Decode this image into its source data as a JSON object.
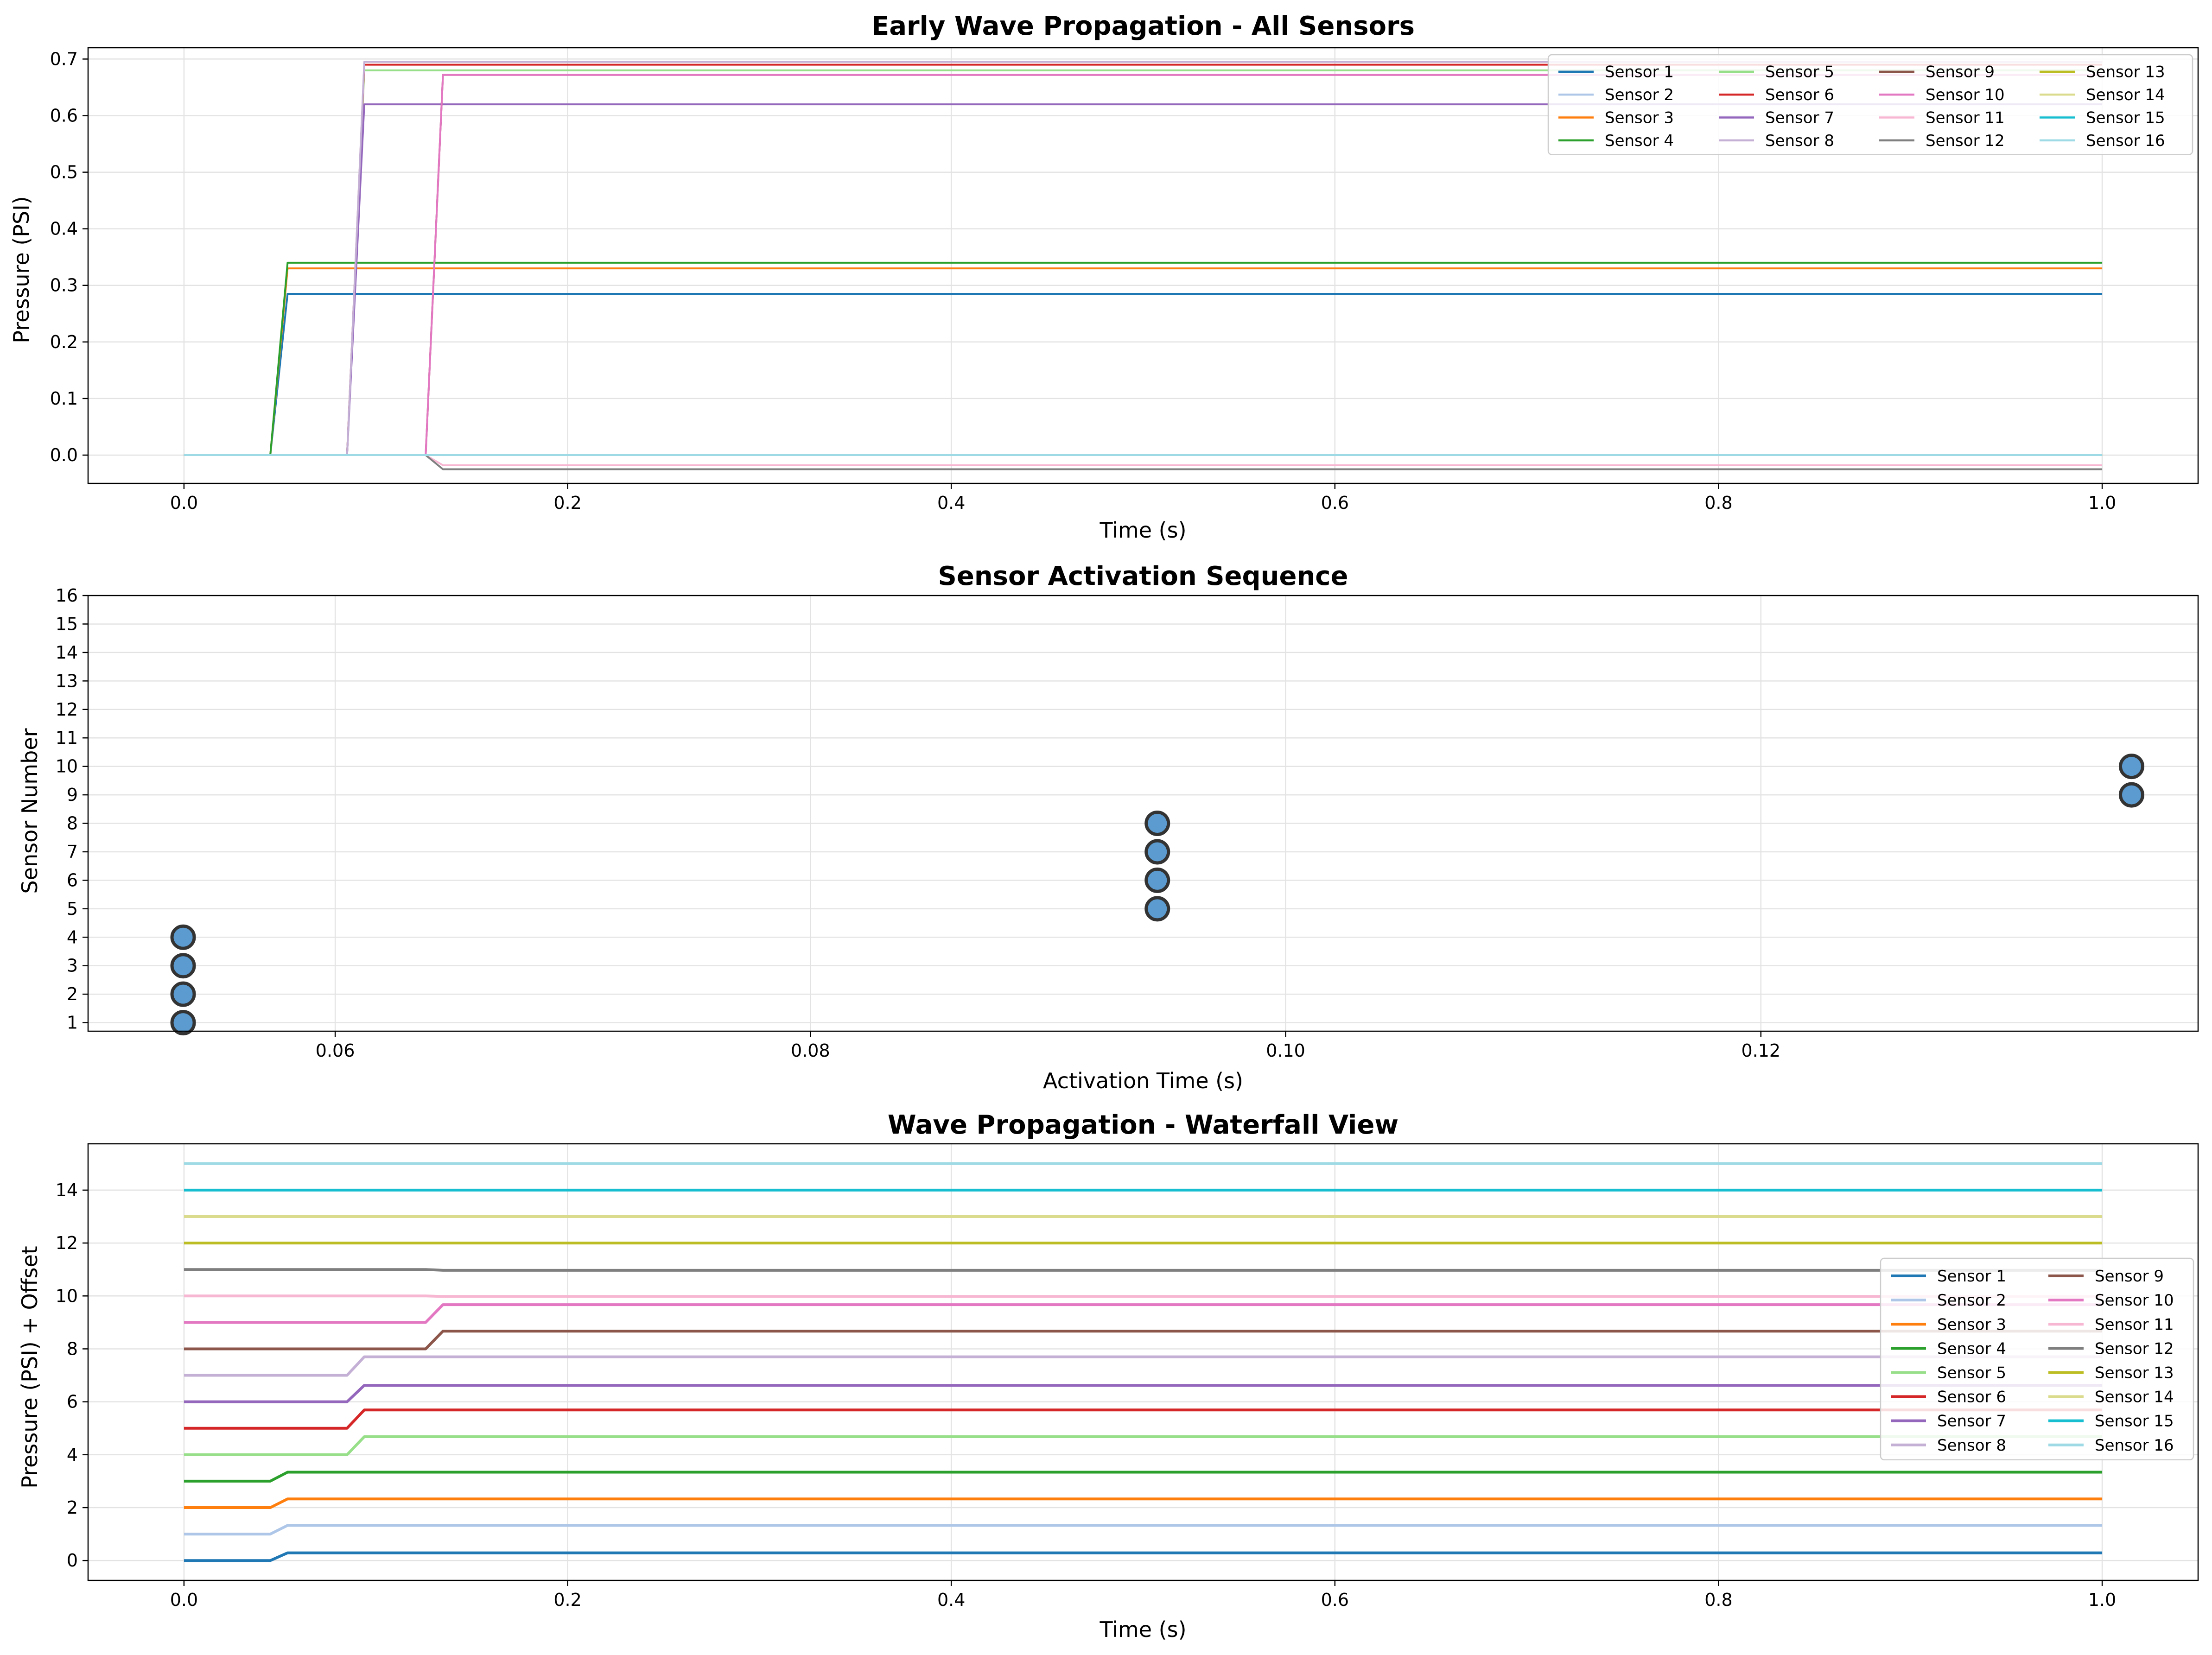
{
  "chart_data": [
    {
      "type": "line",
      "title": "Early Wave Propagation - All Sensors",
      "xlabel": "Time (s)",
      "ylabel": "Pressure (PSI)",
      "xlim": [
        -0.05,
        1.05
      ],
      "ylim": [
        -0.05,
        0.72
      ],
      "xticks": [
        0.0,
        0.2,
        0.4,
        0.6,
        0.8,
        1.0
      ],
      "xtick_labels": [
        "0.0",
        "0.2",
        "0.4",
        "0.6",
        "0.8",
        "1.0"
      ],
      "yticks": [
        0.0,
        0.1,
        0.2,
        0.3,
        0.4,
        0.5,
        0.6,
        0.7
      ],
      "ytick_labels": [
        "0.0",
        "0.1",
        "0.2",
        "0.3",
        "0.4",
        "0.5",
        "0.6",
        "0.7"
      ],
      "grid": true,
      "legend": "upper right, 4 columns",
      "series": [
        {
          "name": "Sensor 1",
          "color": "#1f77b4",
          "x": [
            0,
            0.045,
            0.054,
            1.0
          ],
          "y": [
            0,
            0,
            0.285,
            0.285
          ]
        },
        {
          "name": "Sensor 2",
          "color": "#aec7e8",
          "x": [
            0,
            0.045,
            0.054,
            1.0
          ],
          "y": [
            0,
            0,
            0.33,
            0.33
          ]
        },
        {
          "name": "Sensor 3",
          "color": "#ff7f0e",
          "x": [
            0,
            0.045,
            0.054,
            1.0
          ],
          "y": [
            0,
            0,
            0.33,
            0.33
          ]
        },
        {
          "name": "Sensor 4",
          "color": "#2ca02c",
          "x": [
            0,
            0.045,
            0.054,
            1.0
          ],
          "y": [
            0,
            0,
            0.34,
            0.34
          ]
        },
        {
          "name": "Sensor 5",
          "color": "#98df8a",
          "x": [
            0,
            0.085,
            0.094,
            1.0
          ],
          "y": [
            0,
            0,
            0.68,
            0.68
          ]
        },
        {
          "name": "Sensor 6",
          "color": "#d62728",
          "x": [
            0,
            0.085,
            0.094,
            1.0
          ],
          "y": [
            0,
            0,
            0.69,
            0.69
          ]
        },
        {
          "name": "Sensor 7",
          "color": "#9467bd",
          "x": [
            0,
            0.085,
            0.094,
            1.0
          ],
          "y": [
            0,
            0,
            0.62,
            0.62
          ]
        },
        {
          "name": "Sensor 8",
          "color": "#c5b0d5",
          "x": [
            0,
            0.085,
            0.094,
            1.0
          ],
          "y": [
            0,
            0,
            0.695,
            0.695
          ]
        },
        {
          "name": "Sensor 9",
          "color": "#8c564b",
          "x": [
            0,
            0.126,
            0.135,
            1.0
          ],
          "y": [
            0,
            0,
            0.672,
            0.672
          ]
        },
        {
          "name": "Sensor 10",
          "color": "#e377c2",
          "x": [
            0,
            0.126,
            0.135,
            1.0
          ],
          "y": [
            0,
            0,
            0.672,
            0.672
          ]
        },
        {
          "name": "Sensor 11",
          "color": "#f7b6d2",
          "x": [
            0,
            0.126,
            0.135,
            1.0
          ],
          "y": [
            0,
            0,
            -0.018,
            -0.018
          ]
        },
        {
          "name": "Sensor 12",
          "color": "#7f7f7f",
          "x": [
            0,
            0.126,
            0.135,
            1.0
          ],
          "y": [
            0,
            0,
            -0.025,
            -0.025
          ]
        },
        {
          "name": "Sensor 13",
          "color": "#bcbd22",
          "x": [
            0,
            1.0
          ],
          "y": [
            0,
            0
          ]
        },
        {
          "name": "Sensor 14",
          "color": "#dbdb8d",
          "x": [
            0,
            1.0
          ],
          "y": [
            0,
            0
          ]
        },
        {
          "name": "Sensor 15",
          "color": "#17becf",
          "x": [
            0,
            1.0
          ],
          "y": [
            0,
            0
          ]
        },
        {
          "name": "Sensor 16",
          "color": "#9edae5",
          "x": [
            0,
            1.0
          ],
          "y": [
            0,
            0
          ]
        }
      ]
    },
    {
      "type": "scatter",
      "title": "Sensor Activation Sequence",
      "xlabel": "Activation Time (s)",
      "ylabel": "Sensor Number",
      "xlim": [
        0.0496,
        0.1384
      ],
      "ylim": [
        0.7,
        16
      ],
      "xticks": [
        0.06,
        0.08,
        0.1,
        0.12
      ],
      "xtick_labels": [
        "0.06",
        "0.08",
        "0.10",
        "0.12"
      ],
      "yticks": [
        1,
        2,
        3,
        4,
        5,
        6,
        7,
        8,
        9,
        10,
        11,
        12,
        13,
        14,
        15,
        16
      ],
      "ytick_labels": [
        "1",
        "2",
        "3",
        "4",
        "5",
        "6",
        "7",
        "8",
        "9",
        "10",
        "11",
        "12",
        "13",
        "14",
        "15",
        "16"
      ],
      "grid": true,
      "marker_color": "#5b9bd0",
      "points": [
        {
          "x": 0.0536,
          "y": 1
        },
        {
          "x": 0.0536,
          "y": 2
        },
        {
          "x": 0.0536,
          "y": 3
        },
        {
          "x": 0.0536,
          "y": 4
        },
        {
          "x": 0.0946,
          "y": 5
        },
        {
          "x": 0.0946,
          "y": 6
        },
        {
          "x": 0.0946,
          "y": 7
        },
        {
          "x": 0.0946,
          "y": 8
        },
        {
          "x": 0.1356,
          "y": 9
        },
        {
          "x": 0.1356,
          "y": 10
        }
      ]
    },
    {
      "type": "line",
      "title": "Wave Propagation - Waterfall View",
      "xlabel": "Time (s)",
      "ylabel": "Pressure (PSI) + Offset",
      "xlim": [
        -0.05,
        1.05
      ],
      "ylim": [
        -0.75,
        15.75
      ],
      "xticks": [
        0.0,
        0.2,
        0.4,
        0.6,
        0.8,
        1.0
      ],
      "xtick_labels": [
        "0.0",
        "0.2",
        "0.4",
        "0.6",
        "0.8",
        "1.0"
      ],
      "yticks": [
        0,
        2,
        4,
        6,
        8,
        10,
        12,
        14
      ],
      "ytick_labels": [
        "0",
        "2",
        "4",
        "6",
        "8",
        "10",
        "12",
        "14"
      ],
      "grid": true,
      "legend": "center right, 2 columns",
      "series": [
        {
          "name": "Sensor 1",
          "color": "#1f77b4",
          "x": [
            0,
            0.045,
            0.054,
            1.0
          ],
          "y": [
            0,
            0,
            0.29,
            0.29
          ]
        },
        {
          "name": "Sensor 2",
          "color": "#aec7e8",
          "x": [
            0,
            0.045,
            0.054,
            1.0
          ],
          "y": [
            1,
            1,
            1.33,
            1.33
          ]
        },
        {
          "name": "Sensor 3",
          "color": "#ff7f0e",
          "x": [
            0,
            0.045,
            0.054,
            1.0
          ],
          "y": [
            2,
            2,
            2.33,
            2.33
          ]
        },
        {
          "name": "Sensor 4",
          "color": "#2ca02c",
          "x": [
            0,
            0.045,
            0.054,
            1.0
          ],
          "y": [
            3,
            3,
            3.34,
            3.34
          ]
        },
        {
          "name": "Sensor 5",
          "color": "#98df8a",
          "x": [
            0,
            0.085,
            0.094,
            1.0
          ],
          "y": [
            4,
            4,
            4.68,
            4.68
          ]
        },
        {
          "name": "Sensor 6",
          "color": "#d62728",
          "x": [
            0,
            0.085,
            0.094,
            1.0
          ],
          "y": [
            5,
            5,
            5.69,
            5.69
          ]
        },
        {
          "name": "Sensor 7",
          "color": "#9467bd",
          "x": [
            0,
            0.085,
            0.094,
            1.0
          ],
          "y": [
            6,
            6,
            6.62,
            6.62
          ]
        },
        {
          "name": "Sensor 8",
          "color": "#c5b0d5",
          "x": [
            0,
            0.085,
            0.094,
            1.0
          ],
          "y": [
            7,
            7,
            7.7,
            7.7
          ]
        },
        {
          "name": "Sensor 9",
          "color": "#8c564b",
          "x": [
            0,
            0.126,
            0.135,
            1.0
          ],
          "y": [
            8,
            8,
            8.67,
            8.67
          ]
        },
        {
          "name": "Sensor 10",
          "color": "#e377c2",
          "x": [
            0,
            0.126,
            0.135,
            1.0
          ],
          "y": [
            9,
            9,
            9.67,
            9.67
          ]
        },
        {
          "name": "Sensor 11",
          "color": "#f7b6d2",
          "x": [
            0,
            0.126,
            0.135,
            1.0
          ],
          "y": [
            10,
            10,
            9.98,
            9.98
          ]
        },
        {
          "name": "Sensor 12",
          "color": "#7f7f7f",
          "x": [
            0,
            0.126,
            0.135,
            1.0
          ],
          "y": [
            11,
            11,
            10.97,
            10.97
          ]
        },
        {
          "name": "Sensor 13",
          "color": "#bcbd22",
          "x": [
            0,
            1.0
          ],
          "y": [
            12,
            12
          ]
        },
        {
          "name": "Sensor 14",
          "color": "#dbdb8d",
          "x": [
            0,
            1.0
          ],
          "y": [
            13,
            13
          ]
        },
        {
          "name": "Sensor 15",
          "color": "#17becf",
          "x": [
            0,
            1.0
          ],
          "y": [
            14,
            14
          ]
        },
        {
          "name": "Sensor 16",
          "color": "#9edae5",
          "x": [
            0,
            1.0
          ],
          "y": [
            15,
            15
          ]
        }
      ]
    }
  ]
}
